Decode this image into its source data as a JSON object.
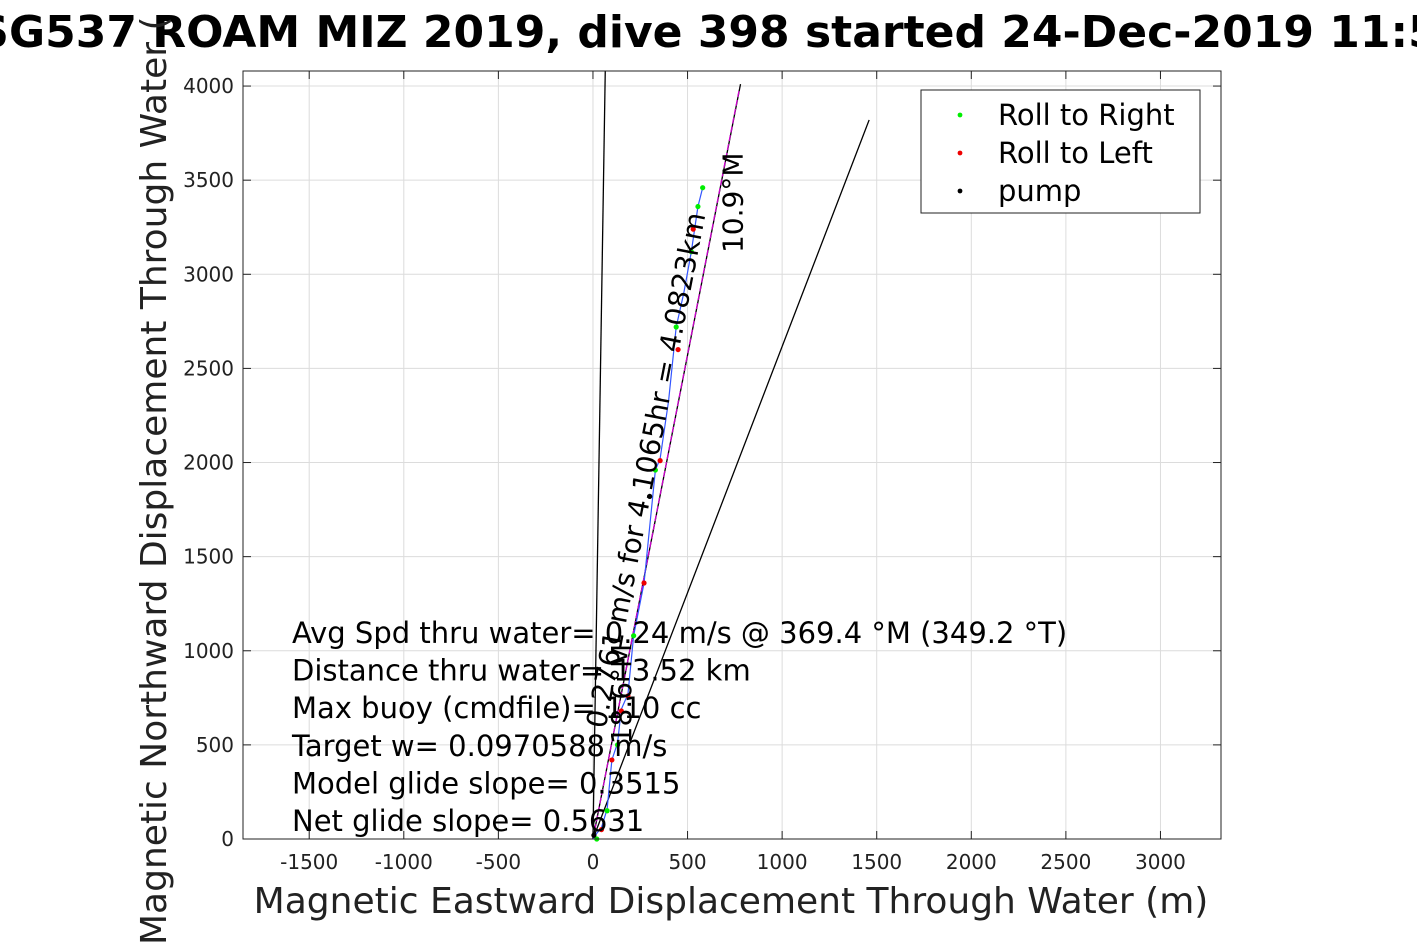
{
  "chart_data": {
    "type": "scatter",
    "title": "SG537 ROAM MIZ 2019, dive 398 started 24-Dec-2019 11:5",
    "xlabel": "Magnetic Eastward Displacement Through Water (m)",
    "ylabel": "Magnetic Northward Displacement Through Water (",
    "xlim": [
      -1850,
      3320
    ],
    "ylim": [
      0,
      4080
    ],
    "xticks": [
      -1500,
      -1000,
      -500,
      0,
      500,
      1000,
      1500,
      2000,
      2500,
      3000
    ],
    "yticks": [
      0,
      500,
      1000,
      1500,
      2000,
      2500,
      3000,
      3500,
      4000
    ],
    "grid": true,
    "legend_position": "top-right",
    "legend": [
      {
        "label": "Roll to Right",
        "color": "#00ee00"
      },
      {
        "label": "Roll to Left",
        "color": "#ee0000"
      },
      {
        "label": "pump",
        "color": "#000000"
      }
    ],
    "series": [
      {
        "name": "Roll to Right",
        "color": "#00ee00",
        "x": [
          20,
          75,
          130,
          215,
          330,
          440,
          520,
          555,
          580
        ],
        "y": [
          0,
          150,
          500,
          1080,
          1960,
          2720,
          3120,
          3360,
          3460
        ]
      },
      {
        "name": "Roll to Left",
        "color": "#ee0000",
        "x": [
          45,
          100,
          150,
          185,
          270,
          355,
          450,
          530
        ],
        "y": [
          50,
          420,
          680,
          760,
          1360,
          2010,
          2600,
          3240
        ]
      },
      {
        "name": "pump",
        "color": "#000000",
        "x": [
          5,
          300
        ],
        "y": [
          20,
          1820
        ]
      }
    ],
    "track": {
      "color": "#3355ff",
      "x": [
        0,
        20,
        45,
        75,
        100,
        130,
        150,
        185,
        215,
        270,
        330,
        355,
        400,
        440,
        480,
        520,
        555,
        580
      ],
      "y": [
        0,
        30,
        60,
        160,
        420,
        510,
        690,
        770,
        1080,
        1360,
        1960,
        2020,
        2330,
        2720,
        2900,
        3120,
        3360,
        3460
      ]
    },
    "lines": [
      {
        "color": "#000000",
        "x": [
          0,
          65
        ],
        "y": [
          0,
          4080
        ]
      },
      {
        "color": "#000000",
        "x": [
          0,
          780
        ],
        "y": [
          0,
          4010
        ]
      },
      {
        "color": "#cc00cc",
        "dash": true,
        "x": [
          0,
          775
        ],
        "y": [
          0,
          3990
        ]
      },
      {
        "color": "#000000",
        "x": [
          0,
          1460
        ],
        "y": [
          0,
          3820
        ]
      }
    ],
    "annotations": [
      {
        "text": "0.2761 m/s for 4.1065hr = 4.0823km",
        "x": 330,
        "y": 1950,
        "rotation": -79
      },
      {
        "text": "10.9°M",
        "x": 790,
        "y": 3380,
        "rotation": -90
      },
      {
        "text": "18.6°M",
        "x": 200,
        "y": 770,
        "rotation": -90
      }
    ],
    "stats": [
      "Avg Spd thru water= 0.24 m/s @ 369.4 °M (349.2 °T)",
      "Distance thru water= 13.52 km",
      "Max buoy (cmdfile)= 110 cc",
      "Target w= 0.0970588 m/s",
      "Model glide slope= 0.3515",
      "Net glide slope= 0.5631"
    ]
  }
}
